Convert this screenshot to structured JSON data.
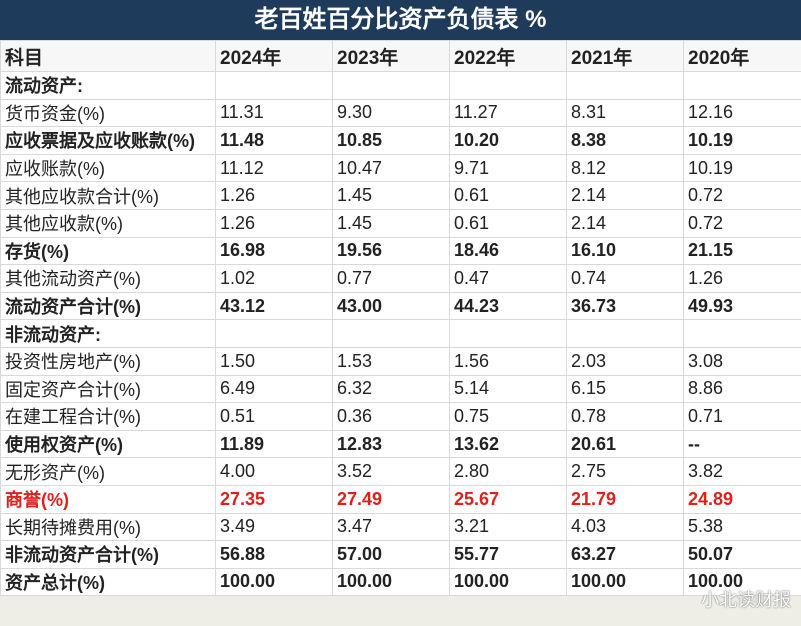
{
  "title": "老百姓百分比资产负债表 %",
  "table": {
    "header": [
      "科目",
      "2024年",
      "2023年",
      "2022年",
      "2021年",
      "2020年"
    ],
    "rows": [
      [
        "流动资产:"
      ],
      [
        "货币资金(%)",
        "11.31",
        "9.30",
        "11.27",
        "8.31",
        "12.16"
      ],
      [
        "应收票据及应收账款(%)",
        "11.48",
        "10.85",
        "10.20",
        "8.38",
        "10.19"
      ],
      [
        "应收账款(%)",
        "11.12",
        "10.47",
        "9.71",
        "8.12",
        "10.19"
      ],
      [
        "其他应收款合计(%)",
        "1.26",
        "1.45",
        "0.61",
        "2.14",
        "0.72"
      ],
      [
        "其他应收款(%)",
        "1.26",
        "1.45",
        "0.61",
        "2.14",
        "0.72"
      ],
      [
        "存货(%)",
        "16.98",
        "19.56",
        "18.46",
        "16.10",
        "21.15"
      ],
      [
        "其他流动资产(%)",
        "1.02",
        "0.77",
        "0.47",
        "0.74",
        "1.26"
      ],
      [
        "流动资产合计(%)",
        "43.12",
        "43.00",
        "44.23",
        "36.73",
        "49.93"
      ],
      [
        "非流动资产:"
      ],
      [
        "投资性房地产(%)",
        "1.50",
        "1.53",
        "1.56",
        "2.03",
        "3.08"
      ],
      [
        "固定资产合计(%)",
        "6.49",
        "6.32",
        "5.14",
        "6.15",
        "8.86"
      ],
      [
        "在建工程合计(%)",
        "0.51",
        "0.36",
        "0.75",
        "0.78",
        "0.71"
      ],
      [
        "使用权资产(%)",
        "11.89",
        "12.83",
        "13.62",
        "20.61",
        "--"
      ],
      [
        "无形资产(%)",
        "4.00",
        "3.52",
        "2.80",
        "2.75",
        "3.82"
      ],
      [
        "商誉(%)",
        "27.35",
        "27.49",
        "25.67",
        "21.79",
        "24.89"
      ],
      [
        "长期待摊费用(%)",
        "3.49",
        "3.47",
        "3.21",
        "4.03",
        "5.38"
      ],
      [
        "非流动资产合计(%)",
        "56.88",
        "57.00",
        "55.77",
        "63.27",
        "50.07"
      ],
      [
        "资产总计(%)",
        "100.00",
        "100.00",
        "100.00",
        "100.00",
        "100.00"
      ]
    ]
  },
  "watermark": "小北读财报"
}
